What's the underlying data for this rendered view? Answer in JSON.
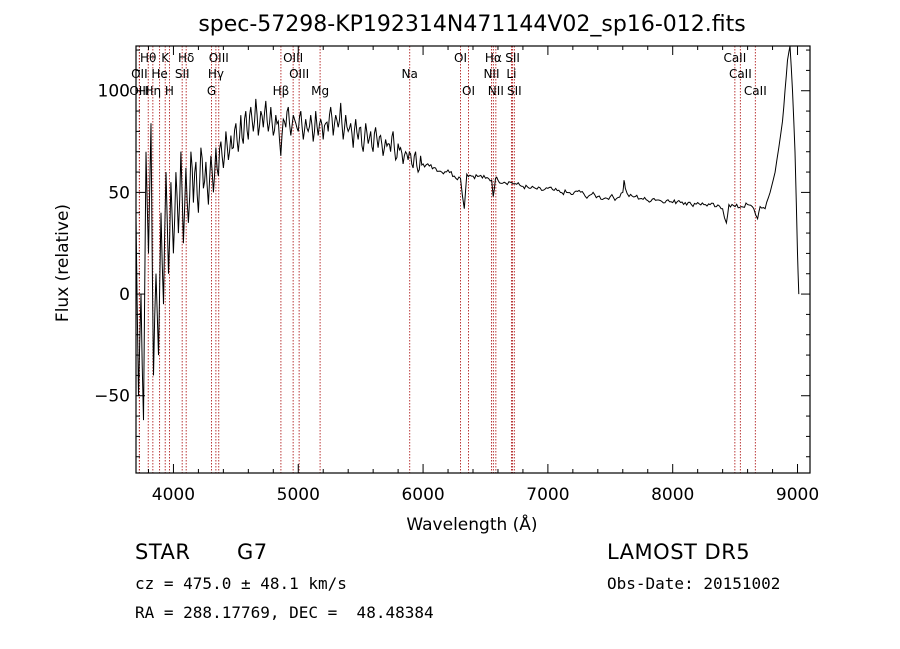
{
  "chart_data": {
    "type": "line",
    "title": "spec-57298-KP192314N471144V02_sp16-012.fits",
    "xlabel": "Wavelength (Å)",
    "ylabel": "Flux (relative)",
    "xlim": [
      3700,
      9100
    ],
    "ylim": [
      -88,
      122
    ],
    "xticks": [
      {
        "value": 4000,
        "label": "4000"
      },
      {
        "value": 5000,
        "label": "5000"
      },
      {
        "value": 6000,
        "label": "6000"
      },
      {
        "value": 7000,
        "label": "7000"
      },
      {
        "value": 8000,
        "label": "8000"
      },
      {
        "value": 9000,
        "label": "9000"
      }
    ],
    "yticks": [
      {
        "value": -50,
        "label": "−50"
      },
      {
        "value": 0,
        "label": "0"
      },
      {
        "value": 50,
        "label": "50"
      },
      {
        "value": 100,
        "label": "100"
      }
    ],
    "grid": false,
    "line_color": "#000000",
    "marker_color": "#b22222",
    "series": [
      {
        "x": [
          3700,
          3720,
          3740,
          3760,
          3780,
          3800,
          3820,
          3840,
          3860,
          3880,
          3900,
          3920,
          3940,
          3960,
          3980,
          4000,
          4020,
          4040,
          4060,
          4080,
          4100,
          4120,
          4140,
          4160,
          4180,
          4200,
          4220,
          4240,
          4260,
          4280,
          4300,
          4320,
          4340,
          4360,
          4380,
          4400,
          4420,
          4440,
          4460,
          4480,
          4500,
          4520,
          4540,
          4560,
          4580,
          4600,
          4620,
          4640,
          4660,
          4680,
          4700,
          4720,
          4740,
          4760,
          4780,
          4800,
          4820,
          4840,
          4860,
          4880,
          4900,
          4920,
          4940,
          4960,
          4980,
          5000,
          5020,
          5040,
          5060,
          5080,
          5100,
          5120,
          5140,
          5160,
          5180,
          5200,
          5220,
          5240,
          5260,
          5280,
          5300,
          5320,
          5340,
          5360,
          5380,
          5400,
          5420,
          5440,
          5460,
          5480,
          5500,
          5520,
          5540,
          5560,
          5580,
          5600,
          5620,
          5640,
          5660,
          5680,
          5700,
          5720,
          5740,
          5760,
          5780,
          5800,
          5820,
          5840,
          5860,
          5880,
          5900,
          5920,
          5940,
          5960,
          5980,
          6000,
          6050,
          6100,
          6150,
          6200,
          6250,
          6300,
          6330,
          6350,
          6400,
          6450,
          6500,
          6550,
          6562,
          6580,
          6600,
          6650,
          6700,
          6750,
          6800,
          6850,
          6900,
          6950,
          7000,
          7050,
          7100,
          7150,
          7200,
          7250,
          7300,
          7350,
          7400,
          7450,
          7500,
          7550,
          7600,
          7610,
          7620,
          7650,
          7700,
          7750,
          7800,
          7850,
          7900,
          7950,
          8000,
          8050,
          8100,
          8150,
          8200,
          8250,
          8300,
          8350,
          8400,
          8430,
          8450,
          8500,
          8550,
          8600,
          8650,
          8680,
          8700,
          8740,
          8780,
          8820,
          8850,
          8880,
          8900,
          8920,
          8940,
          8960,
          8980,
          9000,
          9010
        ],
        "y": [
          38,
          -50,
          0,
          -62,
          70,
          20,
          84,
          -40,
          10,
          -30,
          40,
          -5,
          60,
          10,
          55,
          20,
          60,
          30,
          70,
          25,
          62,
          35,
          70,
          45,
          65,
          40,
          72,
          52,
          65,
          44,
          68,
          50,
          72,
          58,
          75,
          62,
          80,
          66,
          78,
          72,
          84,
          70,
          88,
          74,
          90,
          76,
          92,
          80,
          96,
          78,
          90,
          82,
          95,
          80,
          92,
          78,
          88,
          85,
          68,
          86,
          82,
          92,
          78,
          88,
          84,
          80,
          90,
          76,
          86,
          80,
          88,
          75,
          90,
          78,
          86,
          76,
          84,
          80,
          92,
          78,
          88,
          82,
          94,
          76,
          88,
          80,
          84,
          72,
          86,
          76,
          82,
          70,
          84,
          74,
          80,
          70,
          82,
          72,
          78,
          68,
          76,
          74,
          70,
          80,
          66,
          74,
          72,
          64,
          70,
          66,
          69,
          62,
          70,
          60,
          68,
          64,
          63,
          62,
          60,
          61,
          58,
          57,
          42,
          59,
          58,
          58,
          57,
          56,
          48,
          57,
          56,
          55,
          55,
          54,
          53,
          52,
          52,
          51,
          52,
          51,
          50,
          50,
          49,
          51,
          48,
          49,
          48,
          47,
          48,
          47,
          50,
          56,
          52,
          48,
          48,
          47,
          46,
          47,
          46,
          46,
          45,
          46,
          45,
          44,
          45,
          44,
          44,
          43,
          42,
          35,
          44,
          43,
          43,
          44,
          42,
          37,
          43,
          42,
          50,
          60,
          72,
          85,
          100,
          115,
          122,
          100,
          70,
          20,
          0
        ]
      }
    ],
    "line_markers": [
      {
        "label": "Hθ",
        "wavelength": 3798,
        "row": 1
      },
      {
        "label": "K",
        "wavelength": 3934,
        "row": 1
      },
      {
        "label": "Hδ",
        "wavelength": 4102,
        "row": 1
      },
      {
        "label": "OIII",
        "wavelength": 4363,
        "row": 1
      },
      {
        "label": "OIII",
        "wavelength": 4959,
        "row": 1
      },
      {
        "label": "OI",
        "wavelength": 6300,
        "row": 1
      },
      {
        "label": "Hα",
        "wavelength": 6563,
        "row": 1
      },
      {
        "label": "SII",
        "wavelength": 6717,
        "row": 1
      },
      {
        "label": "CaII",
        "wavelength": 8498,
        "row": 1
      },
      {
        "label": "OII",
        "wavelength": 3727,
        "row": 2
      },
      {
        "label": "He",
        "wavelength": 3889,
        "row": 2
      },
      {
        "label": "SII",
        "wavelength": 4070,
        "row": 2
      },
      {
        "label": "Hγ",
        "wavelength": 4340,
        "row": 2
      },
      {
        "label": "OIII",
        "wavelength": 5007,
        "row": 2
      },
      {
        "label": "Na",
        "wavelength": 5893,
        "row": 2
      },
      {
        "label": "NII",
        "wavelength": 6548,
        "row": 2
      },
      {
        "label": "Li",
        "wavelength": 6708,
        "row": 2
      },
      {
        "label": "CaII",
        "wavelength": 8542,
        "row": 2
      },
      {
        "label": "OIII",
        "wavelength": 3727,
        "row": 3
      },
      {
        "label": "Hη",
        "wavelength": 3835,
        "row": 3
      },
      {
        "label": "H",
        "wavelength": 3968,
        "row": 3
      },
      {
        "label": "G",
        "wavelength": 4305,
        "row": 3
      },
      {
        "label": "Hβ",
        "wavelength": 4861,
        "row": 3
      },
      {
        "label": "Mg",
        "wavelength": 5175,
        "row": 3
      },
      {
        "label": "OI",
        "wavelength": 6364,
        "row": 3
      },
      {
        "label": "NII",
        "wavelength": 6583,
        "row": 3
      },
      {
        "label": "SII",
        "wavelength": 6731,
        "row": 3
      },
      {
        "label": "CaII",
        "wavelength": 8662,
        "row": 3
      }
    ]
  },
  "info": {
    "object_class": "STAR",
    "subclass": "G7",
    "redshift": "cz = 475.0 ± 48.1 km/s",
    "coords": "RA = 288.17769, DEC =  48.48384",
    "survey": "LAMOST DR5",
    "obs_date": "Obs-Date: 20151002"
  }
}
